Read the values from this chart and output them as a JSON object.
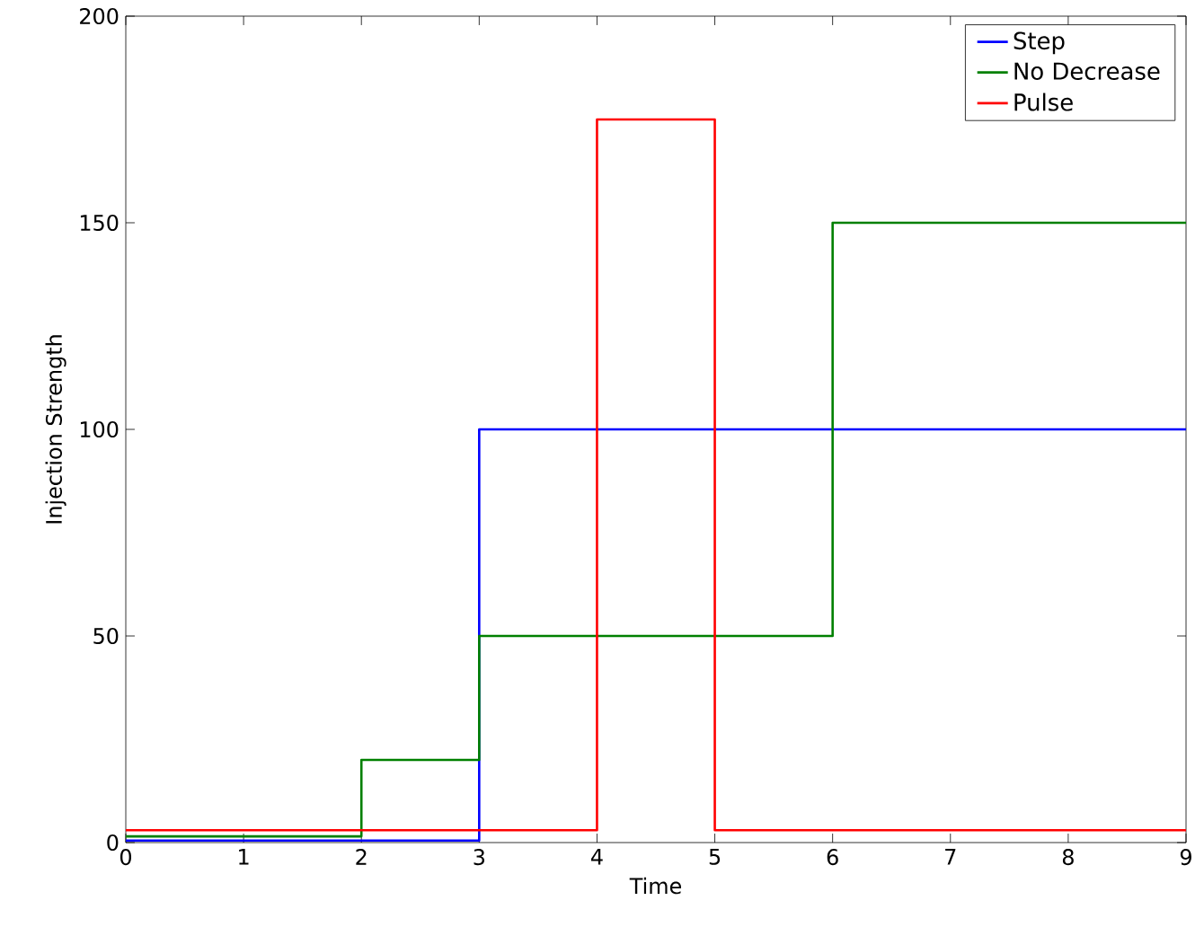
{
  "chart_data": {
    "type": "step",
    "xlabel": "Time",
    "ylabel": "Injection Strength",
    "x": [
      0,
      1,
      2,
      3,
      4,
      5,
      6,
      7,
      8,
      9
    ],
    "series": [
      {
        "name": "Step",
        "color": "#0000ff",
        "values": [
          0.5,
          0.5,
          0.5,
          100,
          100,
          100,
          100,
          100,
          100,
          100
        ]
      },
      {
        "name": "No Decrease",
        "color": "#008000",
        "values": [
          1.5,
          1.5,
          20,
          50,
          50,
          50,
          150,
          150,
          150,
          150
        ]
      },
      {
        "name": "Pulse",
        "color": "#ff0000",
        "values": [
          3,
          3,
          3,
          3,
          175,
          3,
          3,
          3,
          3,
          3
        ]
      }
    ],
    "xlim": [
      0,
      9
    ],
    "ylim": [
      0,
      200
    ],
    "xticks": [
      0,
      1,
      2,
      3,
      4,
      5,
      6,
      7,
      8,
      9
    ],
    "yticks": [
      0,
      50,
      100,
      150,
      200
    ],
    "grid": false,
    "legend": "top right",
    "marker": "none",
    "line_style": "solid"
  }
}
